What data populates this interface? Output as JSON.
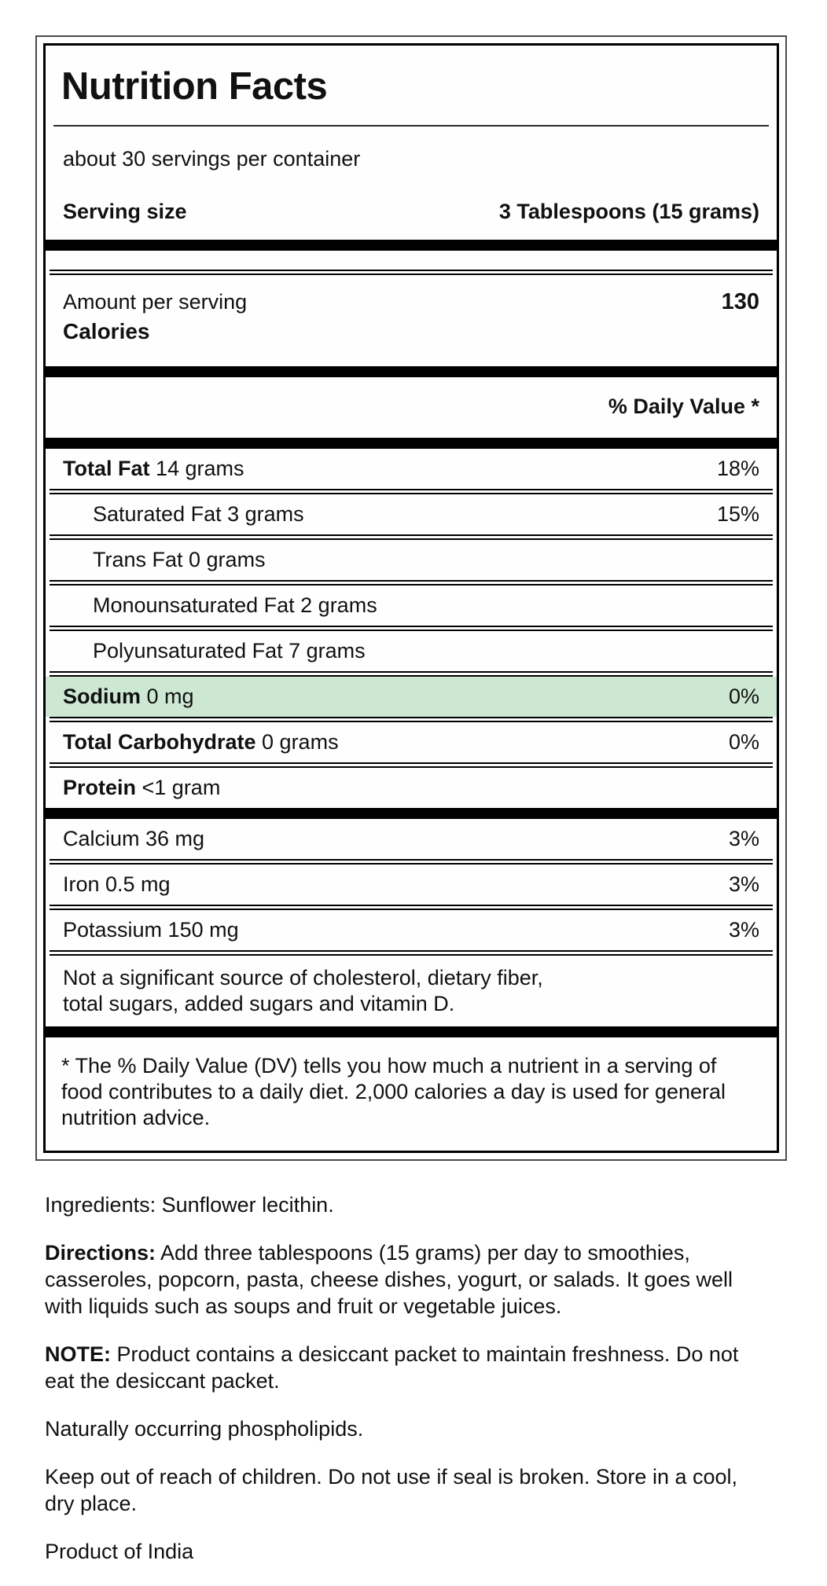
{
  "label": {
    "title": "Nutrition Facts",
    "servings_per_container": "about 30 servings per container",
    "serving_size": {
      "label": "Serving size",
      "value": "3 Tablespoons (15 grams)"
    },
    "amount_per_serving": {
      "label": "Amount per serving",
      "calories_label": "Calories",
      "calories_value": "130"
    },
    "daily_value_header": "% Daily Value *",
    "highlight_color": "#cde8d2",
    "nutrients": [
      {
        "bold": "Total Fat",
        "text": " 14 grams",
        "dv": "18%",
        "indent": false,
        "highlight": false
      },
      {
        "bold": "",
        "text": "Saturated Fat 3 grams",
        "dv": "15%",
        "indent": true,
        "highlight": false
      },
      {
        "bold": "",
        "text": "Trans Fat 0 grams",
        "dv": "",
        "indent": true,
        "highlight": false
      },
      {
        "bold": "",
        "text": "Monounsaturated Fat 2 grams",
        "dv": "",
        "indent": true,
        "highlight": false
      },
      {
        "bold": "",
        "text": "Polyunsaturated Fat 7 grams",
        "dv": "",
        "indent": true,
        "highlight": false
      },
      {
        "bold": "Sodium",
        "text": " 0 mg",
        "dv": "0%",
        "indent": false,
        "highlight": true
      },
      {
        "bold": "Total Carbohydrate",
        "text": " 0 grams",
        "dv": "0%",
        "indent": false,
        "highlight": false
      },
      {
        "bold": "Protein",
        "text": " <1 gram",
        "dv": "",
        "indent": false,
        "highlight": false
      }
    ],
    "minerals": [
      {
        "bold": "",
        "text": "Calcium 36 mg",
        "dv": "3%",
        "indent": false,
        "highlight": false
      },
      {
        "bold": "",
        "text": "Iron 0.5 mg",
        "dv": "3%",
        "indent": false,
        "highlight": false
      },
      {
        "bold": "",
        "text": "Potassium 150 mg",
        "dv": "3%",
        "indent": false,
        "highlight": false
      }
    ],
    "not_significant": "Not a significant source of cholesterol, dietary fiber,\ntotal sugars, added sugars and vitamin D.",
    "footnote": "* The % Daily Value (DV) tells you how much a nutrient in a serving of food contributes to a daily diet. 2,000 calories a day is used for general nutrition advice."
  },
  "info": {
    "paragraphs": [
      {
        "bold": "",
        "text": "Ingredients: Sunflower lecithin."
      },
      {
        "bold": "Directions:",
        "text": " Add three tablespoons (15 grams) per day to smoothies, casseroles, popcorn, pasta, cheese dishes, yogurt, or salads. It goes well with liquids such as soups and fruit or vegetable juices."
      },
      {
        "bold": "NOTE:",
        "text": " Product contains a desiccant packet to maintain freshness. Do not eat the desiccant packet."
      },
      {
        "bold": "",
        "text": "Naturally occurring phospholipids."
      },
      {
        "bold": "",
        "text": "Keep out of reach of children. Do not use if seal is broken. Store in a cool, dry place."
      },
      {
        "bold": "",
        "text": "Product of India"
      }
    ]
  }
}
